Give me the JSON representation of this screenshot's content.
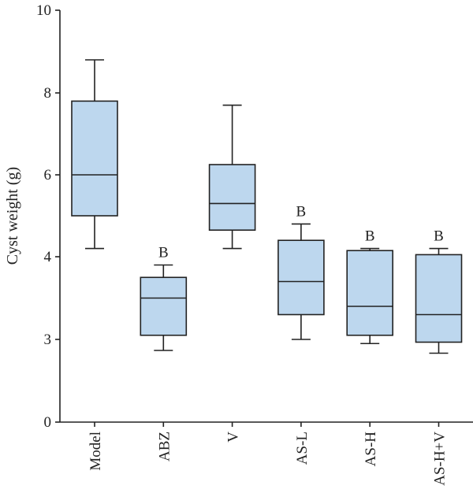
{
  "chart_data": {
    "type": "box",
    "title": "",
    "xlabel": "",
    "ylabel": "Cyst weight (g)",
    "y_tick_labels": [
      "0",
      "3",
      "4",
      "6",
      "8",
      "10"
    ],
    "y_tick_values": [
      0,
      3,
      4,
      6,
      8,
      10
    ],
    "ylim": [
      0,
      10
    ],
    "grid": false,
    "box_color": "#bdd7ee",
    "line_color": "#222222",
    "categories": [
      "Model",
      "ABZ",
      "V",
      "AS-L",
      "AS-H",
      "AS-H+V"
    ],
    "boxes": [
      {
        "category": "Model",
        "whisker_low": 4.2,
        "q1": 5.0,
        "median": 6.0,
        "q3": 7.8,
        "whisker_high": 8.8,
        "label": ""
      },
      {
        "category": "ABZ",
        "whisker_low": 2.6,
        "q1": 3.05,
        "median": 3.5,
        "q3": 3.75,
        "whisker_high": 3.9,
        "label": "B"
      },
      {
        "category": "V",
        "whisker_low": 4.2,
        "q1": 4.65,
        "median": 5.3,
        "q3": 6.25,
        "whisker_high": 7.7,
        "label": ""
      },
      {
        "category": "AS-L",
        "whisker_low": 3.0,
        "q1": 3.3,
        "median": 3.7,
        "q3": 4.4,
        "whisker_high": 4.8,
        "label": "B"
      },
      {
        "category": "AS-H",
        "whisker_low": 2.85,
        "q1": 3.05,
        "median": 3.4,
        "q3": 4.15,
        "whisker_high": 4.2,
        "label": "B"
      },
      {
        "category": "AS-H+V",
        "whisker_low": 2.5,
        "q1": 2.9,
        "median": 3.3,
        "q3": 4.05,
        "whisker_high": 4.2,
        "label": "B"
      }
    ]
  }
}
